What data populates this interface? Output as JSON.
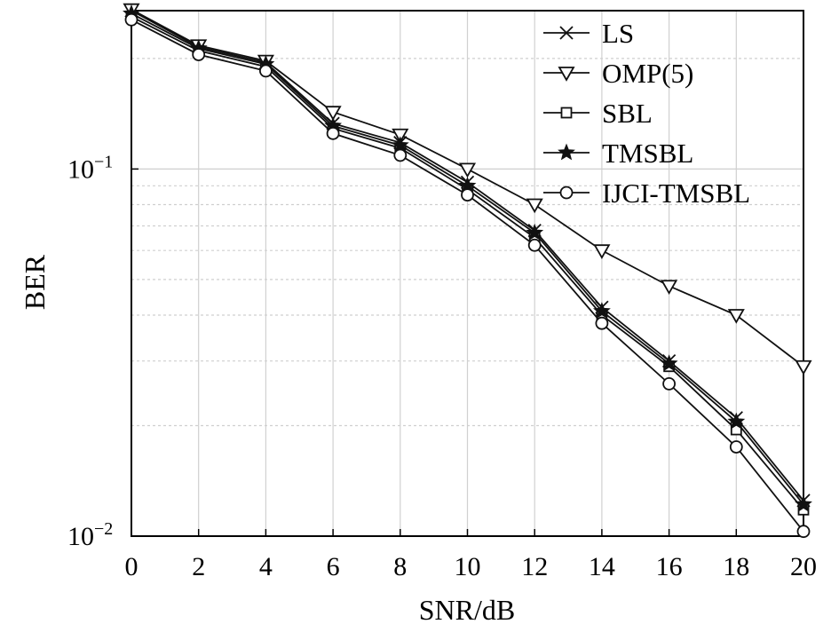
{
  "chart_data": {
    "type": "line",
    "xlabel": "SNR/dB",
    "ylabel": "BER",
    "x": [
      0,
      2,
      4,
      6,
      8,
      10,
      12,
      14,
      16,
      18,
      20
    ],
    "xticks": [
      "0",
      "2",
      "4",
      "6",
      "8",
      "10",
      "12",
      "14",
      "16",
      "18",
      "20"
    ],
    "xlim": [
      0,
      20
    ],
    "ylim": [
      0.01,
      0.27
    ],
    "yscale": "log",
    "yticks": [
      {
        "value": 0.1,
        "base": "10",
        "exp": "−1"
      },
      {
        "value": 0.01,
        "base": "10",
        "exp": "−2"
      }
    ],
    "grid": true,
    "legend_position": "top-right",
    "series": [
      {
        "name": "LS",
        "marker": "x",
        "values": [
          0.27,
          0.215,
          0.195,
          0.133,
          0.118,
          0.092,
          0.068,
          0.042,
          0.03,
          0.021,
          0.0125
        ]
      },
      {
        "name": "OMP(5)",
        "marker": "triangle-down",
        "values": [
          0.272,
          0.217,
          0.197,
          0.143,
          0.124,
          0.1,
          0.08,
          0.06,
          0.048,
          0.04,
          0.029
        ]
      },
      {
        "name": "SBL",
        "marker": "square",
        "values": [
          0.26,
          0.21,
          0.19,
          0.129,
          0.114,
          0.088,
          0.065,
          0.04,
          0.029,
          0.0195,
          0.0118
        ]
      },
      {
        "name": "TMSBL",
        "marker": "star",
        "values": [
          0.265,
          0.213,
          0.193,
          0.131,
          0.116,
          0.09,
          0.067,
          0.041,
          0.0295,
          0.0205,
          0.0122
        ]
      },
      {
        "name": "IJCI-TMSBL",
        "marker": "circle",
        "values": [
          0.255,
          0.205,
          0.185,
          0.125,
          0.109,
          0.085,
          0.062,
          0.038,
          0.026,
          0.0175,
          0.0103
        ]
      }
    ]
  }
}
